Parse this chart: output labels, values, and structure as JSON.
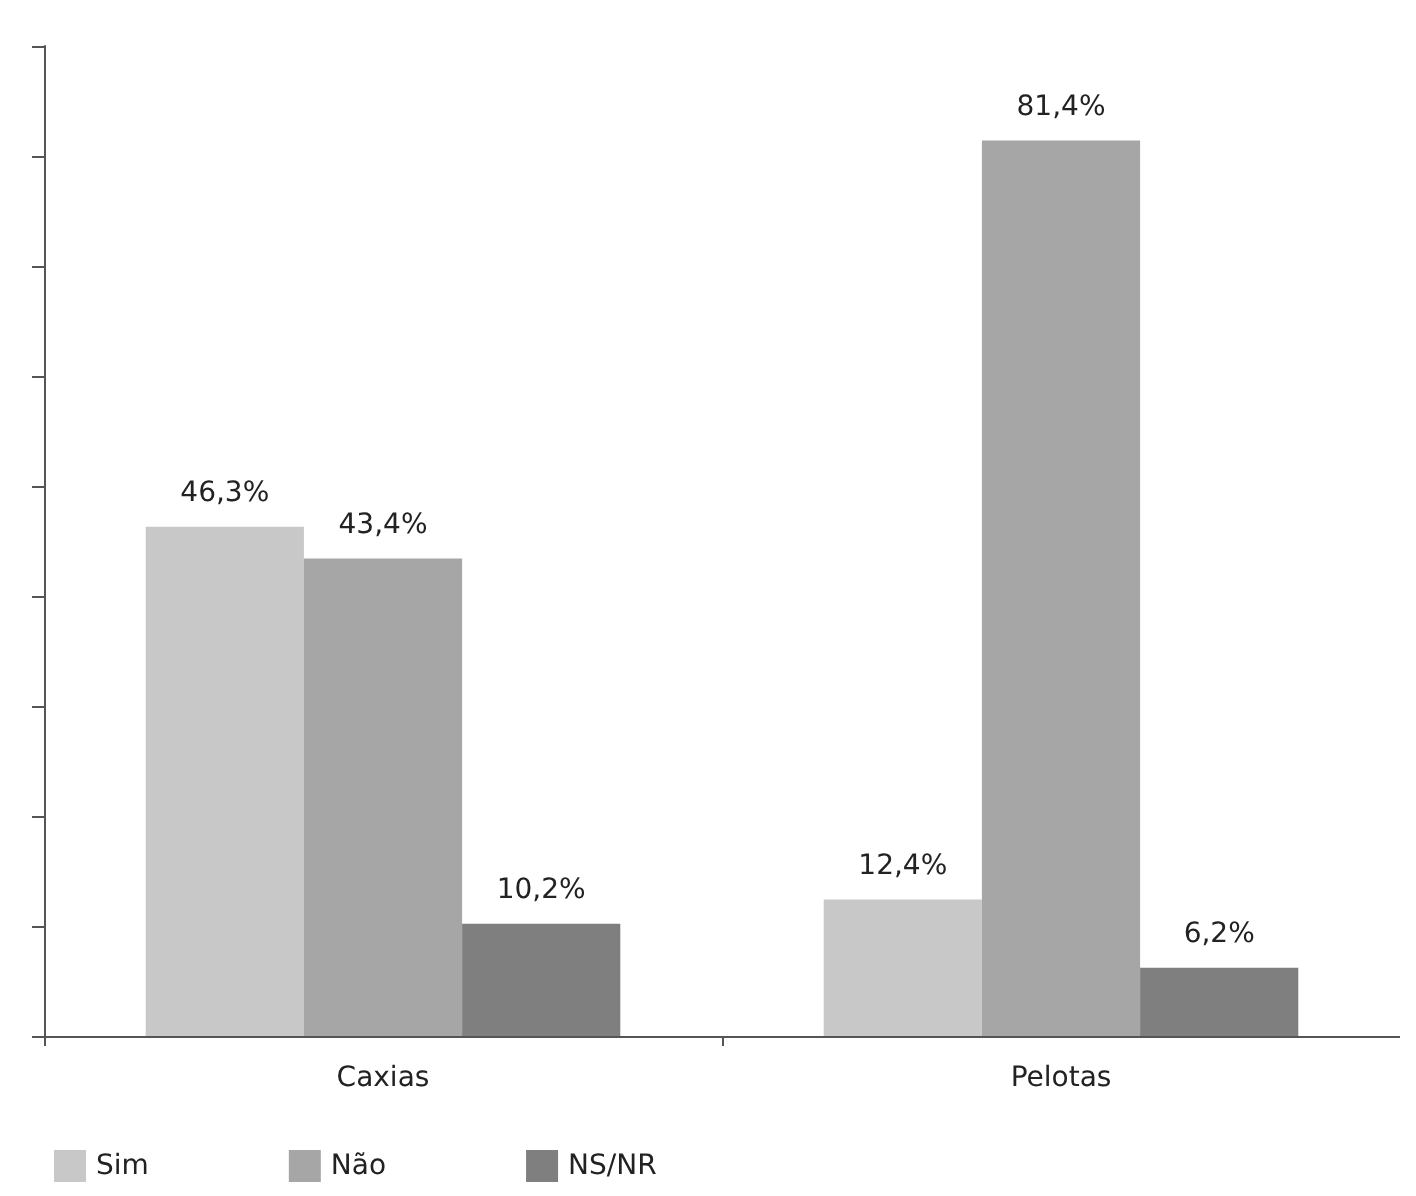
{
  "chart_data": {
    "type": "bar",
    "categories": [
      "Caxias",
      "Pelotas"
    ],
    "series": [
      {
        "name": "Sim",
        "color": "#c8c8c8",
        "values": [
          46.3,
          12.4
        ],
        "value_labels": [
          "46,3%",
          "12,4%"
        ]
      },
      {
        "name": "Não",
        "color": "#a6a6a6",
        "values": [
          43.4,
          81.4
        ],
        "value_labels": [
          "43,4%",
          "81,4%"
        ]
      },
      {
        "name": "NS/NR",
        "color": "#7f7f7f",
        "values": [
          10.2,
          6.2
        ],
        "value_labels": [
          "10,2%",
          "6,2%"
        ]
      }
    ],
    "ylim": [
      0,
      90
    ],
    "yticks": [
      {
        "value": 0,
        "label": null
      },
      {
        "value": 10,
        "label": null
      },
      {
        "value": 20,
        "label": null
      },
      {
        "value": 30,
        "label": null
      },
      {
        "value": 40,
        "label": null
      },
      {
        "value": 50,
        "label": null
      },
      {
        "value": 60,
        "label": null
      },
      {
        "value": 70,
        "label": null
      },
      {
        "value": 80,
        "label": null
      },
      {
        "value": 90,
        "label": null
      }
    ],
    "tick_labels": "x",
    "grid": false,
    "legend": "bottom left"
  }
}
